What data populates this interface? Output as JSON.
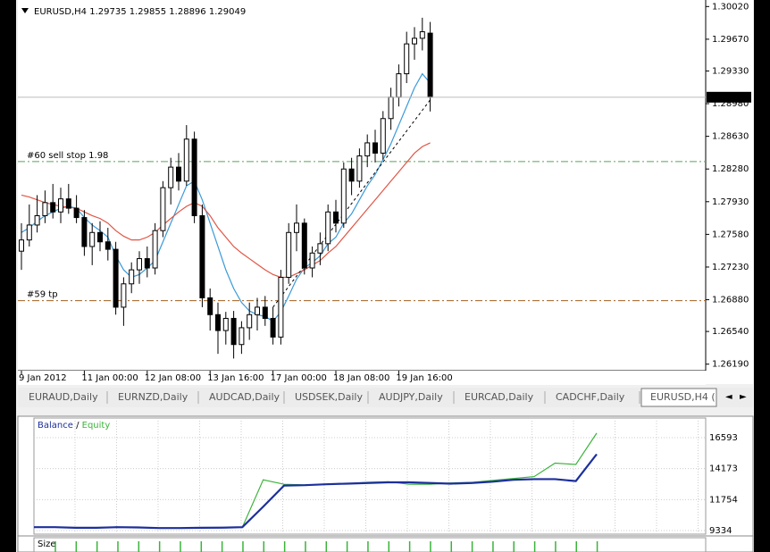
{
  "chart": {
    "symbol": "EURUSD,H4",
    "ylim": [
      1.2612,
      1.3009
    ],
    "yticks": [
      {
        "value": 1.3002,
        "label": "1.30020"
      },
      {
        "value": 1.2967,
        "label": "1.29670"
      },
      {
        "value": 1.2933,
        "label": "1.29330"
      },
      {
        "value": 1.2898,
        "label": "1.28980"
      },
      {
        "value": 1.2863,
        "label": "1.28630"
      },
      {
        "value": 1.2828,
        "label": "1.28280"
      },
      {
        "value": 1.2793,
        "label": "1.27930"
      },
      {
        "value": 1.2758,
        "label": "1.27580"
      },
      {
        "value": 1.2723,
        "label": "1.27230"
      },
      {
        "value": 1.2688,
        "label": "1.26880"
      },
      {
        "value": 1.2654,
        "label": "1.26540"
      },
      {
        "value": 1.2619,
        "label": "1.26190"
      }
    ],
    "time_labels": [
      {
        "bar": 0,
        "label": "9 Jan 2012"
      },
      {
        "bar": 8,
        "label": "11 Jan 00:00"
      },
      {
        "bar": 16,
        "label": "12 Jan 08:00"
      },
      {
        "bar": 24,
        "label": "13 Jan 16:00"
      },
      {
        "bar": 32,
        "label": "17 Jan 00:00"
      },
      {
        "bar": 40,
        "label": "18 Jan 08:00"
      },
      {
        "bar": 48,
        "label": "19 Jan 16:00"
      }
    ],
    "candles": [
      [
        1.274,
        1.277,
        1.272,
        1.2752
      ],
      [
        1.2752,
        1.279,
        1.2745,
        1.2768
      ],
      [
        1.2768,
        1.28,
        1.276,
        1.2778
      ],
      [
        1.2778,
        1.2805,
        1.277,
        1.2792
      ],
      [
        1.2792,
        1.2812,
        1.2775,
        1.2782
      ],
      [
        1.2782,
        1.2808,
        1.277,
        1.2796
      ],
      [
        1.2796,
        1.2812,
        1.278,
        1.2786
      ],
      [
        1.2786,
        1.28,
        1.277,
        1.2776
      ],
      [
        1.2776,
        1.2784,
        1.2735,
        1.2745
      ],
      [
        1.2745,
        1.277,
        1.2725,
        1.276
      ],
      [
        1.276,
        1.2772,
        1.274,
        1.275
      ],
      [
        1.275,
        1.2765,
        1.273,
        1.2742
      ],
      [
        1.2742,
        1.275,
        1.2672,
        1.268
      ],
      [
        1.268,
        1.2712,
        1.266,
        1.2705
      ],
      [
        1.2705,
        1.2728,
        1.2695,
        1.272
      ],
      [
        1.272,
        1.274,
        1.2705,
        1.2732
      ],
      [
        1.2732,
        1.2745,
        1.2712,
        1.2722
      ],
      [
        1.2722,
        1.277,
        1.2715,
        1.2762
      ],
      [
        1.2762,
        1.2815,
        1.2755,
        1.2808
      ],
      [
        1.2808,
        1.284,
        1.279,
        1.283
      ],
      [
        1.283,
        1.2845,
        1.2805,
        1.2815
      ],
      [
        1.2815,
        1.2875,
        1.281,
        1.286
      ],
      [
        1.286,
        1.2868,
        1.277,
        1.2778
      ],
      [
        1.2778,
        1.279,
        1.268,
        1.269
      ],
      [
        1.269,
        1.27,
        1.2655,
        1.2672
      ],
      [
        1.2672,
        1.2685,
        1.263,
        1.2655
      ],
      [
        1.2655,
        1.2675,
        1.264,
        1.2668
      ],
      [
        1.2668,
        1.2676,
        1.2625,
        1.264
      ],
      [
        1.264,
        1.2665,
        1.263,
        1.2658
      ],
      [
        1.2658,
        1.2685,
        1.2645,
        1.2672
      ],
      [
        1.2672,
        1.269,
        1.2655,
        1.268
      ],
      [
        1.268,
        1.2692,
        1.266,
        1.2668
      ],
      [
        1.2668,
        1.268,
        1.264,
        1.2648
      ],
      [
        1.2648,
        1.272,
        1.264,
        1.2712
      ],
      [
        1.2712,
        1.277,
        1.2705,
        1.276
      ],
      [
        1.276,
        1.279,
        1.274,
        1.277
      ],
      [
        1.277,
        1.2775,
        1.2715,
        1.2722
      ],
      [
        1.2722,
        1.2745,
        1.2712,
        1.2738
      ],
      [
        1.2738,
        1.276,
        1.2725,
        1.2748
      ],
      [
        1.2748,
        1.279,
        1.274,
        1.2782
      ],
      [
        1.2782,
        1.2795,
        1.276,
        1.277
      ],
      [
        1.277,
        1.2835,
        1.2765,
        1.2828
      ],
      [
        1.2828,
        1.284,
        1.28,
        1.2815
      ],
      [
        1.2815,
        1.285,
        1.2808,
        1.2842
      ],
      [
        1.2842,
        1.2865,
        1.283,
        1.2856
      ],
      [
        1.2856,
        1.287,
        1.2835,
        1.2845
      ],
      [
        1.2845,
        1.289,
        1.2838,
        1.2882
      ],
      [
        1.2882,
        1.2915,
        1.287,
        1.2905
      ],
      [
        1.2905,
        1.294,
        1.2895,
        1.293
      ],
      [
        1.293,
        1.2975,
        1.292,
        1.2962
      ],
      [
        1.2962,
        1.298,
        1.2945,
        1.2968
      ],
      [
        1.2968,
        1.299,
        1.2955,
        1.2975
      ],
      [
        1.29735,
        1.29855,
        1.28896,
        1.29049
      ]
    ],
    "ma_fast": {
      "color": "#3a9ad9",
      "values": [
        1.276,
        1.2765,
        1.2772,
        1.2778,
        1.2782,
        1.2786,
        1.2788,
        1.2786,
        1.2776,
        1.2768,
        1.2762,
        1.2755,
        1.2735,
        1.272,
        1.2712,
        1.2715,
        1.2722,
        1.273,
        1.275,
        1.277,
        1.279,
        1.281,
        1.2815,
        1.2795,
        1.277,
        1.2745,
        1.272,
        1.27,
        1.2685,
        1.2676,
        1.2672,
        1.267,
        1.2665,
        1.2675,
        1.2692,
        1.271,
        1.2722,
        1.2728,
        1.2735,
        1.2748,
        1.2755,
        1.277,
        1.278,
        1.2795,
        1.281,
        1.2822,
        1.2838,
        1.2855,
        1.2875,
        1.2895,
        1.2915,
        1.293,
        1.292
      ]
    },
    "ma_slow": {
      "color": "#e05545",
      "values": [
        1.28,
        1.2798,
        1.2795,
        1.2792,
        1.279,
        1.2788,
        1.2787,
        1.2786,
        1.2782,
        1.2778,
        1.2775,
        1.277,
        1.2762,
        1.2756,
        1.2752,
        1.2752,
        1.2755,
        1.276,
        1.2768,
        1.2775,
        1.2782,
        1.2788,
        1.2792,
        1.2788,
        1.2778,
        1.2765,
        1.2755,
        1.2745,
        1.2738,
        1.2732,
        1.2726,
        1.272,
        1.2715,
        1.2712,
        1.2712,
        1.2716,
        1.272,
        1.2725,
        1.273,
        1.2738,
        1.2745,
        1.2755,
        1.2765,
        1.2775,
        1.2785,
        1.2795,
        1.2805,
        1.2815,
        1.2825,
        1.2835,
        1.2845,
        1.2852,
        1.2856
      ]
    },
    "levels": [
      {
        "label": "#60 sell stop 1.98",
        "price": 1.2836,
        "color": "#5aa55a"
      },
      {
        "label": "#59 tp",
        "price": 1.2687,
        "color": "#a06020"
      }
    ],
    "trendline": [
      [
        32,
        1.268
      ],
      [
        52,
        1.2902
      ]
    ]
  },
  "tabs": [
    "EURAUD,Daily",
    "EURNZD,Daily",
    "AUDCAD,Daily",
    "USDSEK,Daily",
    "AUDJPY,Daily",
    "EURCAD,Daily",
    "CADCHF,Daily",
    "EURUSD,H4 ("
  ],
  "indicator": {
    "balance_label": "Balance",
    "separator": "/",
    "equity_label": "Equity",
    "ylim": [
      9055,
      18127
    ],
    "yticks": [
      9334,
      11754,
      14173,
      16593
    ],
    "balance": {
      "color": "#1c2f9c",
      "values": [
        9600,
        9600,
        9550,
        9550,
        9600,
        9580,
        9530,
        9530,
        9550,
        9560,
        9600,
        11200,
        12850,
        12880,
        12950,
        13000,
        13050,
        13100,
        13100,
        13050,
        13000,
        13050,
        13150,
        13300,
        13350,
        13350,
        13200,
        15300
      ]
    },
    "equity": {
      "color": "#3bb33b",
      "values": [
        9600,
        9600,
        9550,
        9550,
        9600,
        9580,
        9530,
        9530,
        9550,
        9560,
        9600,
        13300,
        12950,
        12900,
        12950,
        13000,
        13100,
        13150,
        12950,
        12950,
        13050,
        13100,
        13250,
        13400,
        13550,
        14600,
        14500,
        16950
      ]
    }
  },
  "size_panel": {
    "label": "Size"
  }
}
